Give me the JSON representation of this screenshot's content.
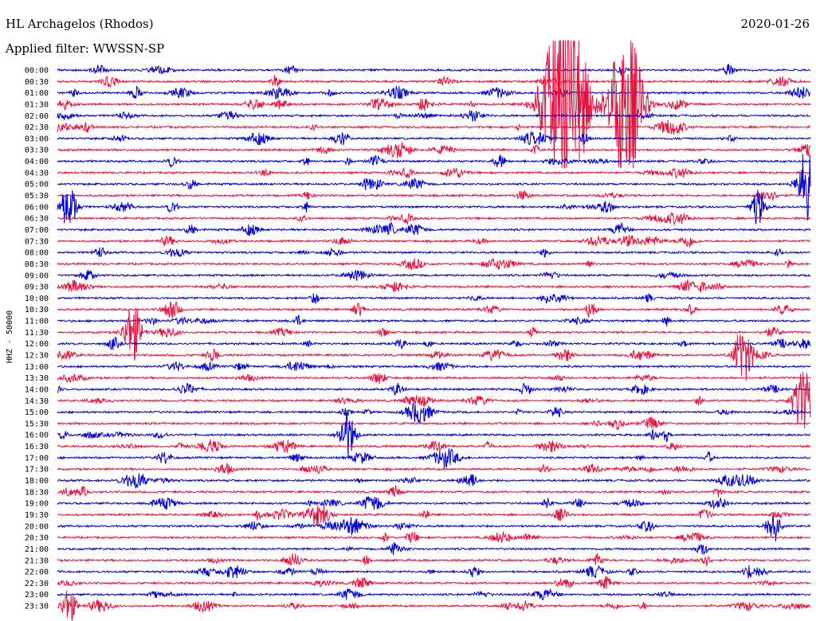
{
  "header": {
    "station": "HL Archagelos (Rhodos)",
    "date": "2020-01-26",
    "filter_label": "Applied filter: WWSSN-SP"
  },
  "chart_data": {
    "type": "line",
    "title": "HL Archagelos (Rhodos)",
    "ylabel": "HHZ - 50000",
    "y_tick_labels": [
      "00:00",
      "00:30",
      "01:00",
      "01:30",
      "02:00",
      "02:30",
      "03:00",
      "03:30",
      "04:00",
      "04:30",
      "05:00",
      "05:30",
      "06:00",
      "06:30",
      "07:00",
      "07:30",
      "08:00",
      "08:30",
      "09:00",
      "09:30",
      "10:00",
      "10:30",
      "11:00",
      "11:30",
      "12:00",
      "12:30",
      "13:00",
      "13:30",
      "14:00",
      "14:30",
      "15:00",
      "15:30",
      "16:00",
      "16:30",
      "17:00",
      "17:30",
      "18:00",
      "18:30",
      "19:00",
      "19:30",
      "20:00",
      "20:30",
      "21:00",
      "21:30",
      "22:00",
      "22:30",
      "23:00",
      "23:30"
    ],
    "trace_colors": [
      "#0000d0",
      "#e8123e"
    ],
    "grid": false,
    "notable_events": [
      {
        "trace": "01:30",
        "fraction": 0.675,
        "amplitude": 1.0
      },
      {
        "trace": "01:30",
        "fraction": 0.755,
        "amplitude": 0.7
      },
      {
        "trace": "05:00",
        "fraction": 0.995,
        "amplitude": 0.3
      },
      {
        "trace": "06:00",
        "fraction": 0.015,
        "amplitude": 0.2
      },
      {
        "trace": "06:00",
        "fraction": 0.93,
        "amplitude": 0.15
      },
      {
        "trace": "11:30",
        "fraction": 0.1,
        "amplitude": 0.25
      },
      {
        "trace": "12:30",
        "fraction": 0.91,
        "amplitude": 0.25
      },
      {
        "trace": "14:30",
        "fraction": 0.99,
        "amplitude": 0.3
      },
      {
        "trace": "16:00",
        "fraction": 0.385,
        "amplitude": 0.2
      },
      {
        "trace": "20:00",
        "fraction": 0.95,
        "amplitude": 0.15
      },
      {
        "trace": "23:30",
        "fraction": 0.015,
        "amplitude": 0.15
      }
    ]
  }
}
